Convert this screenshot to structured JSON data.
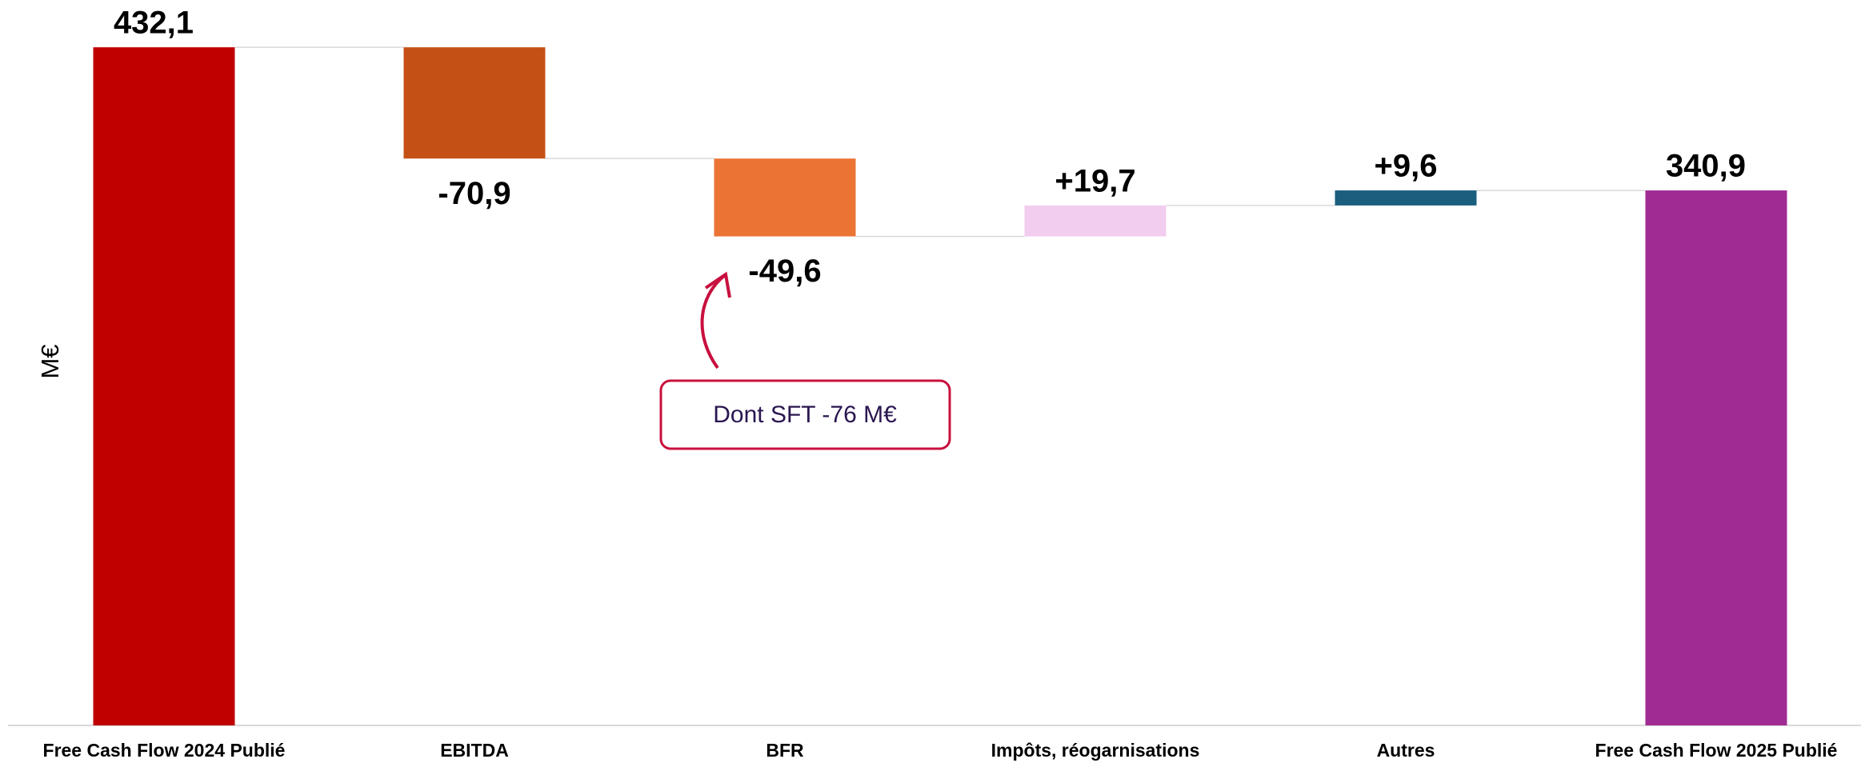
{
  "chart_data": {
    "type": "waterfall",
    "y_label": "M€",
    "categories": [
      "Free Cash Flow 2024 Publié",
      "EBITDA",
      "BFR",
      "Impôts, réogarnisations",
      "Autres",
      "Free Cash Flow 2025 Publié"
    ],
    "values": [
      432.1,
      -70.9,
      -49.6,
      19.7,
      9.6,
      340.9
    ],
    "value_labels": [
      "432,1",
      "-70,9",
      "-49,6",
      "+19,7",
      "+9,6",
      "340,9"
    ],
    "colors": [
      "#c00000",
      "#c55016",
      "#eb7435",
      "#f2cdef",
      "#1b5e7e",
      "#a02b93"
    ],
    "ylim": [
      0,
      450
    ],
    "annotation": "Dont SFT -76 M€"
  }
}
